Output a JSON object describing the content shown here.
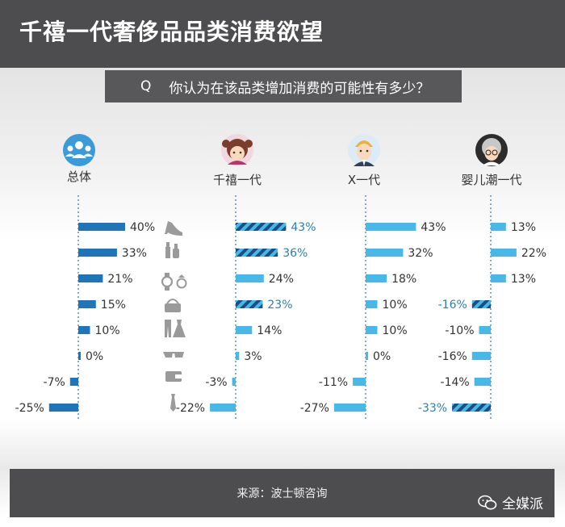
{
  "header": {
    "title": "千禧一代奢侈品品类消费欲望"
  },
  "question": {
    "prefix": "Q",
    "text": "你认为在该品类增加消费的可能性有多少？"
  },
  "chart_data": {
    "type": "bar",
    "categories": [
      "鞋履",
      "美妆",
      "腕表珠宝",
      "手袋",
      "成衣",
      "眼镜",
      "皮具",
      "领带"
    ],
    "series": [
      {
        "name": "总体",
        "values": [
          40,
          33,
          21,
          15,
          10,
          0,
          -7,
          -25
        ]
      },
      {
        "name": "千禧一代",
        "values": [
          43,
          36,
          24,
          23,
          14,
          3,
          -3,
          -22
        ]
      },
      {
        "name": "X一代",
        "values": [
          43,
          32,
          18,
          10,
          10,
          0,
          -11,
          -27
        ]
      },
      {
        "name": "婴儿潮一代",
        "values": [
          13,
          22,
          13,
          -16,
          -10,
          -16,
          -14,
          -33
        ]
      }
    ],
    "highlighted": [
      [],
      [
        0,
        1,
        3
      ],
      [],
      [
        3,
        7
      ]
    ],
    "unit": "%",
    "colors": {
      "overall": "#1f75b7",
      "group": "#47b8e8",
      "highlight_stripe": "#1a4f86",
      "highlight_text": "#2d7fb5"
    }
  },
  "icons": {
    "categories": [
      "high-heel-icon",
      "cosmetics-icon",
      "watch-ring-icon",
      "handbag-icon",
      "clothing-icon",
      "sunglasses-icon",
      "wallet-icon",
      "tie-icon"
    ],
    "groups": [
      "group-people-icon",
      "millennial-girl-icon",
      "genx-man-icon",
      "boomer-woman-icon"
    ]
  },
  "footer": {
    "source": "来源：波士顿咨询",
    "brand": "全媒派"
  }
}
